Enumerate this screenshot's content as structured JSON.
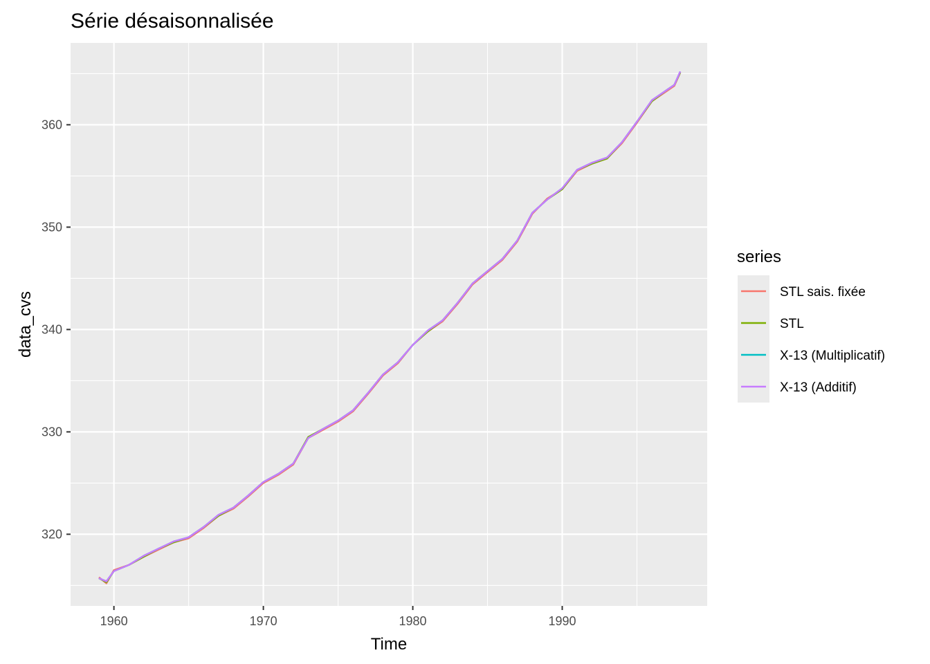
{
  "chart_data": {
    "type": "line",
    "title": "Série désaisonnalisée",
    "xlabel": "Time",
    "ylabel": "data_cvs",
    "xlim": [
      1957.1,
      1999.7
    ],
    "ylim": [
      313.0,
      368.0
    ],
    "x_ticks": [
      1960,
      1970,
      1980,
      1990
    ],
    "y_ticks": [
      320,
      330,
      340,
      350,
      360
    ],
    "grid": true,
    "legend": {
      "title": "series",
      "position": "right",
      "entries": [
        "STL sais. fixée",
        "STL",
        "X-13 (Multiplicatif)",
        "X-13 (Additif)"
      ]
    },
    "series": [
      {
        "name": "STL sais. fixée",
        "color": "#F8766D",
        "x": [
          1959.0,
          1959.5,
          1960.0,
          1961.0,
          1962.0,
          1963.0,
          1964.0,
          1965.0,
          1966.0,
          1967.0,
          1968.0,
          1969.0,
          1970.0,
          1971.0,
          1972.0,
          1973.0,
          1974.0,
          1975.0,
          1976.0,
          1977.0,
          1978.0,
          1979.0,
          1980.0,
          1981.0,
          1982.0,
          1983.0,
          1984.0,
          1985.0,
          1986.0,
          1987.0,
          1988.0,
          1989.0,
          1990.0,
          1991.0,
          1992.0,
          1993.0,
          1994.0,
          1995.0,
          1996.0,
          1997.0,
          1997.5,
          1997.9
        ],
        "values": [
          315.8,
          315.2,
          316.5,
          317.0,
          317.8,
          318.5,
          319.2,
          319.6,
          320.6,
          321.8,
          322.5,
          323.7,
          325.0,
          325.8,
          326.8,
          329.4,
          330.2,
          331.0,
          332.0,
          333.7,
          335.5,
          336.7,
          338.5,
          339.8,
          340.8,
          342.5,
          344.4,
          345.6,
          346.8,
          348.6,
          351.3,
          352.8,
          353.7,
          355.5,
          356.2,
          356.7,
          358.2,
          360.2,
          362.3,
          363.3,
          363.8,
          365.1
        ]
      },
      {
        "name": "STL",
        "color": "#7CAE00",
        "x": [
          1959.0,
          1959.5,
          1960.0,
          1961.0,
          1962.0,
          1963.0,
          1964.0,
          1965.0,
          1966.0,
          1967.0,
          1968.0,
          1969.0,
          1970.0,
          1971.0,
          1972.0,
          1973.0,
          1974.0,
          1975.0,
          1976.0,
          1977.0,
          1978.0,
          1979.0,
          1980.0,
          1981.0,
          1982.0,
          1983.0,
          1984.0,
          1985.0,
          1986.0,
          1987.0,
          1988.0,
          1989.0,
          1990.0,
          1991.0,
          1992.0,
          1993.0,
          1994.0,
          1995.0,
          1996.0,
          1997.0,
          1997.5,
          1997.9
        ],
        "values": [
          315.7,
          315.3,
          316.4,
          317.0,
          317.8,
          318.6,
          319.2,
          319.7,
          320.7,
          321.8,
          322.6,
          323.8,
          325.1,
          325.9,
          326.9,
          329.5,
          330.3,
          331.1,
          332.1,
          333.8,
          335.6,
          336.8,
          338.5,
          339.8,
          340.9,
          342.6,
          344.5,
          345.7,
          346.9,
          348.7,
          351.4,
          352.7,
          353.7,
          355.6,
          356.2,
          356.7,
          358.3,
          360.3,
          362.3,
          363.4,
          363.9,
          365.1
        ]
      },
      {
        "name": "X-13 (Multiplicatif)",
        "color": "#00BFC4",
        "x": [
          1959.0,
          1959.5,
          1960.0,
          1961.0,
          1962.0,
          1963.0,
          1964.0,
          1965.0,
          1966.0,
          1967.0,
          1968.0,
          1969.0,
          1970.0,
          1971.0,
          1972.0,
          1973.0,
          1974.0,
          1975.0,
          1976.0,
          1977.0,
          1978.0,
          1979.0,
          1980.0,
          1981.0,
          1982.0,
          1983.0,
          1984.0,
          1985.0,
          1986.0,
          1987.0,
          1988.0,
          1989.0,
          1990.0,
          1991.0,
          1992.0,
          1993.0,
          1994.0,
          1995.0,
          1996.0,
          1997.0,
          1997.5,
          1997.9
        ],
        "values": [
          315.7,
          315.4,
          316.4,
          317.0,
          317.9,
          318.6,
          319.3,
          319.7,
          320.7,
          321.9,
          322.6,
          323.8,
          325.1,
          325.9,
          326.9,
          329.4,
          330.3,
          331.1,
          332.1,
          333.8,
          335.6,
          336.8,
          338.5,
          339.9,
          340.9,
          342.6,
          344.5,
          345.7,
          346.9,
          348.7,
          351.4,
          352.7,
          353.8,
          355.6,
          356.3,
          356.8,
          358.3,
          360.3,
          362.4,
          363.4,
          363.9,
          365.2
        ]
      },
      {
        "name": "X-13 (Additif)",
        "color": "#C77CFF",
        "x": [
          1959.0,
          1959.5,
          1960.0,
          1961.0,
          1962.0,
          1963.0,
          1964.0,
          1965.0,
          1966.0,
          1967.0,
          1968.0,
          1969.0,
          1970.0,
          1971.0,
          1972.0,
          1973.0,
          1974.0,
          1975.0,
          1976.0,
          1977.0,
          1978.0,
          1979.0,
          1980.0,
          1981.0,
          1982.0,
          1983.0,
          1984.0,
          1985.0,
          1986.0,
          1987.0,
          1988.0,
          1989.0,
          1990.0,
          1991.0,
          1992.0,
          1993.0,
          1994.0,
          1995.0,
          1996.0,
          1997.0,
          1997.5,
          1997.9
        ],
        "values": [
          315.7,
          315.4,
          316.4,
          317.0,
          317.9,
          318.6,
          319.3,
          319.7,
          320.7,
          321.9,
          322.6,
          323.8,
          325.1,
          325.9,
          326.9,
          329.4,
          330.3,
          331.1,
          332.1,
          333.8,
          335.6,
          336.8,
          338.5,
          339.9,
          340.9,
          342.6,
          344.5,
          345.7,
          346.9,
          348.7,
          351.4,
          352.7,
          353.8,
          355.6,
          356.3,
          356.8,
          358.3,
          360.3,
          362.4,
          363.4,
          363.9,
          365.2
        ]
      }
    ]
  }
}
